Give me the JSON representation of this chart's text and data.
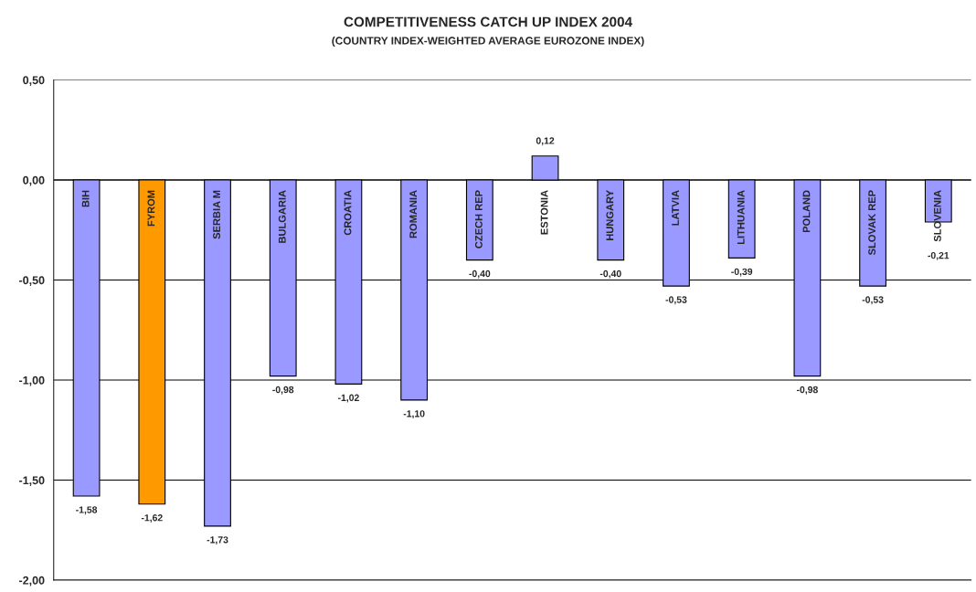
{
  "chart_data": {
    "type": "bar",
    "title": "COMPETITIVENESS CATCH UP INDEX 2004",
    "subtitle": "(COUNTRY INDEX-WEIGHTED AVERAGE EUROZONE INDEX)",
    "categories": [
      "BIH",
      "FYROM",
      "SERBIA M",
      "BULGARIA",
      "CROATIA",
      "ROMANIA",
      "CZECH REP",
      "ESTONIA",
      "HUNGARY",
      "LATVIA",
      "LITHUANIA",
      "POLAND",
      "SLOVAK REP",
      "SLOVENIA"
    ],
    "values": [
      -1.58,
      -1.62,
      -1.73,
      -0.98,
      -1.02,
      -1.1,
      -0.4,
      0.12,
      -0.4,
      -0.53,
      -0.39,
      -0.98,
      -0.53,
      -0.21
    ],
    "value_labels": [
      "-1,58",
      "-1,62",
      "-1,73",
      "-0,98",
      "-1,02",
      "-1,10",
      "-0,40",
      "0,12",
      "-0,40",
      "-0,53",
      "-0,39",
      "-0,98",
      "-0,53",
      "-0,21"
    ],
    "colors": [
      "#9999ff",
      "#ff9900",
      "#9999ff",
      "#9999ff",
      "#9999ff",
      "#9999ff",
      "#9999ff",
      "#9999ff",
      "#9999ff",
      "#9999ff",
      "#9999ff",
      "#9999ff",
      "#9999ff",
      "#9999ff"
    ],
    "ylim": [
      -2.0,
      0.5
    ],
    "yticks": [
      {
        "value": -2.0,
        "label": "-2,00"
      },
      {
        "value": -1.5,
        "label": "-1,50"
      },
      {
        "value": -1.0,
        "label": "-1,00"
      },
      {
        "value": -0.5,
        "label": "-0,50"
      },
      {
        "value": 0.0,
        "label": "0,00"
      },
      {
        "value": 0.5,
        "label": "0,50"
      }
    ],
    "grid": "y"
  }
}
